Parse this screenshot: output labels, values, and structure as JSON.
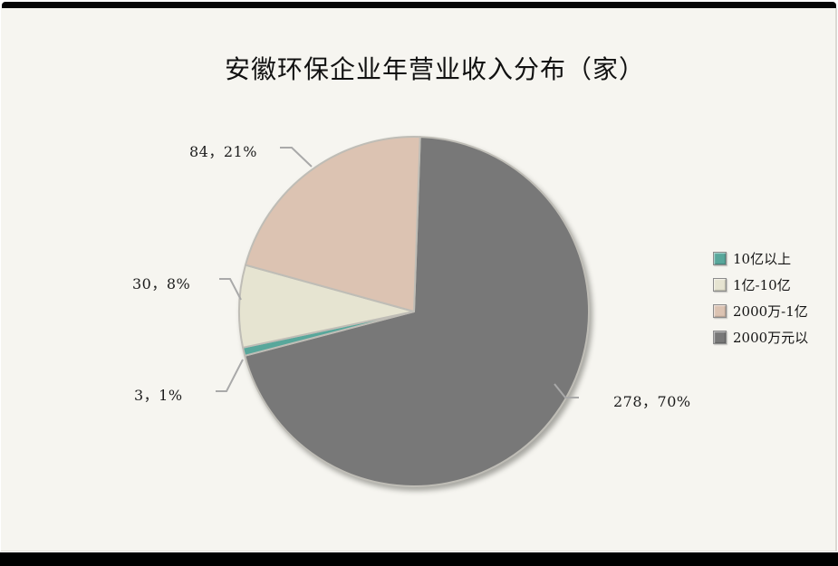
{
  "chart_data": {
    "type": "pie",
    "title": "安徽环保企业年营业收入分布（家）",
    "categories": [
      "10亿以上",
      "1亿-10亿",
      "2000万-1亿",
      "2000万元以"
    ],
    "values": [
      3,
      30,
      84,
      278
    ],
    "percent_labels": [
      "1%",
      "8%",
      "21%",
      "70%"
    ],
    "data_labels": [
      "3，1%",
      "30，8%",
      "84，21%",
      "278，70%"
    ],
    "colors": [
      "#58A79B",
      "#E6E4D1",
      "#DCC3B2",
      "#787878"
    ],
    "slice_border_color": "#BFBDB6",
    "leader_line_color": "#A9A9A9",
    "background_color": "#F6F5F0",
    "legend_position": "right"
  }
}
